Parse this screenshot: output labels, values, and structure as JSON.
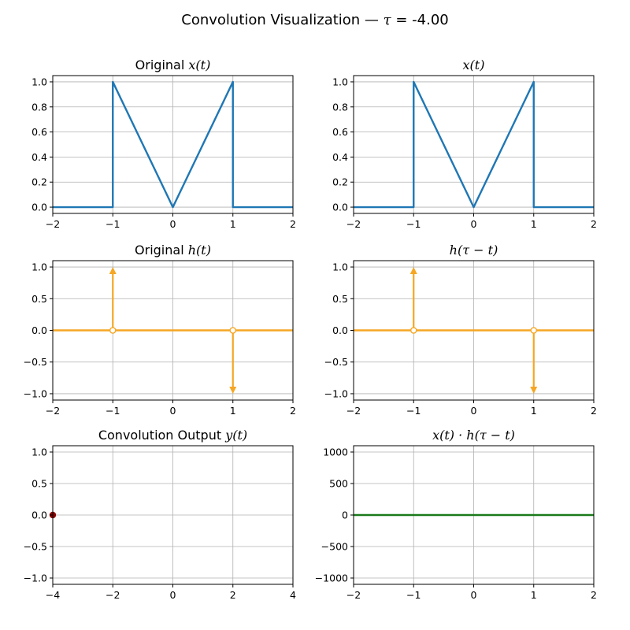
{
  "figure": {
    "title_prefix": "Convolution Visualization — ",
    "title_symbol": "τ",
    "title_suffix": " = -4.00",
    "tau": -4.0
  },
  "colors": {
    "x_signal": "#1f77b4",
    "h_signal": "#f5a623",
    "output_point": "#8b0000",
    "product": "#1a7a1a",
    "grid": "#b0b0b0"
  },
  "chart_data": [
    {
      "id": "x-original",
      "type": "line",
      "title_text": "Original ",
      "title_math": "x(t)",
      "xlim": [
        -2,
        2
      ],
      "ylim": [
        -0.05,
        1.05
      ],
      "xticks": [
        -2,
        -1,
        0,
        1,
        2
      ],
      "xtick_labels": [
        "−2",
        "−1",
        "0",
        "1",
        "2"
      ],
      "yticks": [
        0,
        0.2,
        0.4,
        0.6,
        0.8,
        1.0
      ],
      "ytick_labels": [
        "0.0",
        "0.2",
        "0.4",
        "0.6",
        "0.8",
        "1.0"
      ],
      "grid": true,
      "series": [
        {
          "kind": "line",
          "color_key": "x_signal",
          "x": [
            -2,
            -1,
            -1,
            0,
            1,
            1,
            2
          ],
          "y": [
            0,
            0,
            1,
            0,
            1,
            0,
            0
          ]
        }
      ]
    },
    {
      "id": "x-shifted",
      "type": "line",
      "title_text": "",
      "title_math": "x(t)",
      "xlim": [
        -2,
        2
      ],
      "ylim": [
        -0.05,
        1.05
      ],
      "xticks": [
        -2,
        -1,
        0,
        1,
        2
      ],
      "xtick_labels": [
        "−2",
        "−1",
        "0",
        "1",
        "2"
      ],
      "yticks": [
        0,
        0.2,
        0.4,
        0.6,
        0.8,
        1.0
      ],
      "ytick_labels": [
        "0.0",
        "0.2",
        "0.4",
        "0.6",
        "0.8",
        "1.0"
      ],
      "grid": true,
      "series": [
        {
          "kind": "line",
          "color_key": "x_signal",
          "x": [
            -2,
            -1,
            -1,
            0,
            1,
            1,
            2
          ],
          "y": [
            0,
            0,
            1,
            0,
            1,
            0,
            0
          ]
        }
      ]
    },
    {
      "id": "h-original",
      "type": "line",
      "title_text": "Original ",
      "title_math": "h(t)",
      "xlim": [
        -2,
        2
      ],
      "ylim": [
        -1.1,
        1.1
      ],
      "xticks": [
        -2,
        -1,
        0,
        1,
        2
      ],
      "xtick_labels": [
        "−2",
        "−1",
        "0",
        "1",
        "2"
      ],
      "yticks": [
        -1.0,
        -0.5,
        0,
        0.5,
        1.0
      ],
      "ytick_labels": [
        "−1.0",
        "−0.5",
        "0.0",
        "0.5",
        "1.0"
      ],
      "grid": true,
      "series": [
        {
          "kind": "line",
          "color_key": "h_signal",
          "x": [
            -2,
            2
          ],
          "y": [
            0,
            0
          ]
        },
        {
          "kind": "impulses",
          "color_key": "h_signal",
          "x": [
            -1,
            1
          ],
          "y": [
            1,
            -1
          ]
        }
      ]
    },
    {
      "id": "h-flipped",
      "type": "line",
      "title_text": "",
      "title_math": "h(τ − t)",
      "xlim": [
        -2,
        2
      ],
      "ylim": [
        -1.1,
        1.1
      ],
      "xticks": [
        -2,
        -1,
        0,
        1,
        2
      ],
      "xtick_labels": [
        "−2",
        "−1",
        "0",
        "1",
        "2"
      ],
      "yticks": [
        -1.0,
        -0.5,
        0,
        0.5,
        1.0
      ],
      "ytick_labels": [
        "−1.0",
        "−0.5",
        "0.0",
        "0.5",
        "1.0"
      ],
      "grid": true,
      "series": [
        {
          "kind": "line",
          "color_key": "h_signal",
          "x": [
            -2,
            2
          ],
          "y": [
            0,
            0
          ]
        },
        {
          "kind": "impulses",
          "color_key": "h_signal",
          "x": [
            -1,
            1
          ],
          "y": [
            1,
            -1
          ]
        }
      ]
    },
    {
      "id": "y-output",
      "type": "scatter",
      "title_text": "Convolution Output ",
      "title_math": "y(t)",
      "xlim": [
        -4,
        4
      ],
      "ylim": [
        -1.1,
        1.1
      ],
      "xticks": [
        -4,
        -2,
        0,
        2,
        4
      ],
      "xtick_labels": [
        "−4",
        "−2",
        "0",
        "2",
        "4"
      ],
      "yticks": [
        -1.0,
        -0.5,
        0,
        0.5,
        1.0
      ],
      "ytick_labels": [
        "−1.0",
        "−0.5",
        "0.0",
        "0.5",
        "1.0"
      ],
      "grid": true,
      "series": [
        {
          "kind": "points",
          "color_key": "output_point",
          "x": [
            -4
          ],
          "y": [
            0
          ]
        }
      ]
    },
    {
      "id": "product",
      "type": "line",
      "title_text": "",
      "title_math": "x(t) · h(τ − t)",
      "xlim": [
        -2,
        2
      ],
      "ylim": [
        -1100,
        1100
      ],
      "xticks": [
        -2,
        -1,
        0,
        1,
        2
      ],
      "xtick_labels": [
        "−2",
        "−1",
        "0",
        "1",
        "2"
      ],
      "yticks": [
        -1000,
        -500,
        0,
        500,
        1000
      ],
      "ytick_labels": [
        "−1000",
        "−500",
        "0",
        "500",
        "1000"
      ],
      "grid": true,
      "series": [
        {
          "kind": "line",
          "color_key": "product",
          "x": [
            -2,
            2
          ],
          "y": [
            0,
            0
          ]
        }
      ]
    }
  ]
}
